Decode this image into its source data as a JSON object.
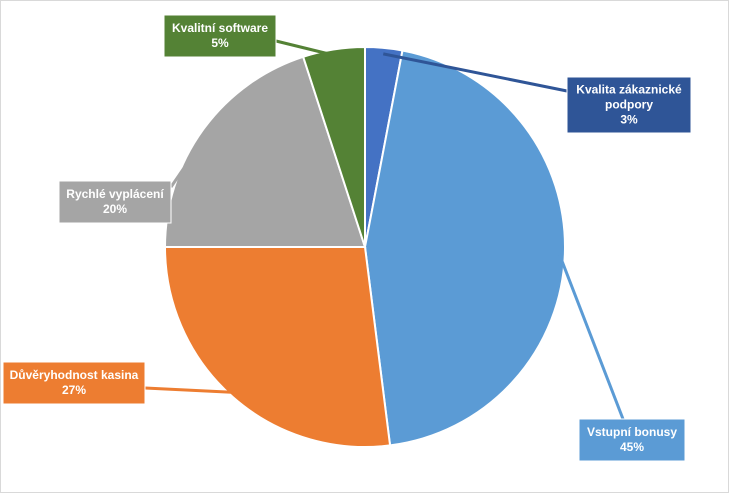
{
  "chart_data": {
    "type": "pie",
    "title": "",
    "categories": [
      "Kvalita zákaznické podpory",
      "Vstupní bonusy",
      "Důvěryhodnost kasina",
      "Rychlé vyplácení",
      "Kvalitní software"
    ],
    "values": [
      3,
      45,
      27,
      20,
      5
    ],
    "percent_labels": [
      "3%",
      "45%",
      "27%",
      "20%",
      "5%"
    ],
    "colors": [
      "#4472C4",
      "#5B9BD5",
      "#ED7D31",
      "#A5A5A5",
      "#548235"
    ],
    "label_colors": [
      "#2F5597",
      "#5B9BD5",
      "#ED7D31",
      "#A5A5A5",
      "#548235"
    ],
    "label_lines": [
      [
        "Kvalita zákaznické",
        "podpory"
      ],
      [
        "Vstupní bonusy"
      ],
      [
        "Důvěryhodnost kasina"
      ],
      [
        "Rychlé vyplácení"
      ],
      [
        "Kvalitní software"
      ]
    ],
    "start_angle": "top",
    "direction": "clockwise",
    "legend": "none",
    "data_labels": "callouts"
  }
}
